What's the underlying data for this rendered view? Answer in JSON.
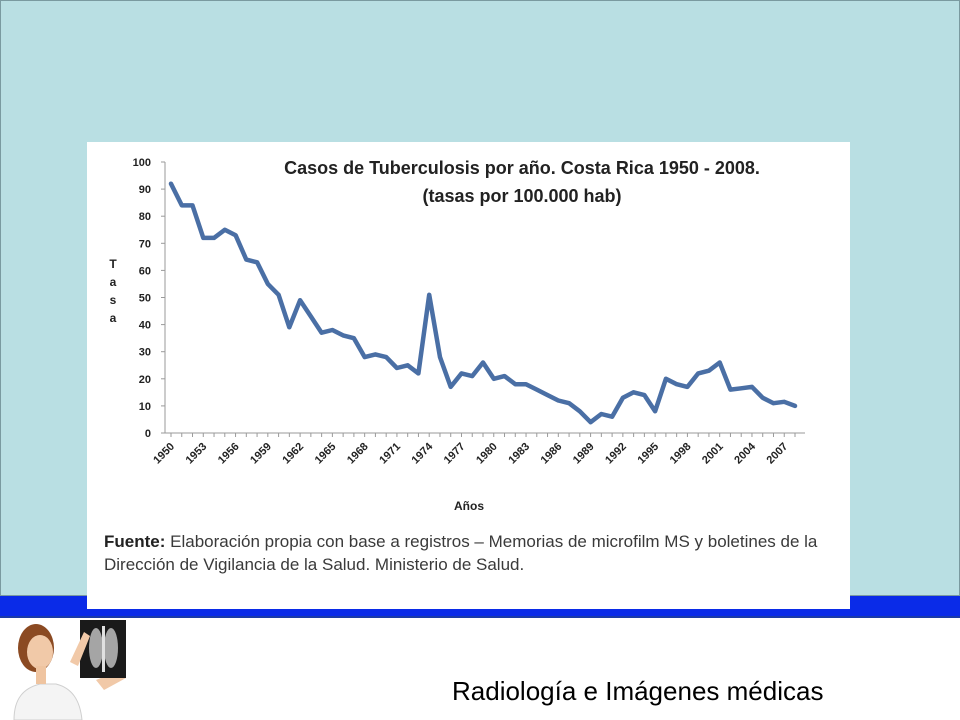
{
  "chart_data": {
    "type": "line",
    "title_line1": "Casos de Tuberculosis por año. Costa Rica 1950 - 2008.",
    "title_line2": "(tasas por 100.000 hab)",
    "xlabel": "Años",
    "ylabel": "Tasa",
    "ylim": [
      0,
      100
    ],
    "yticks": [
      "0",
      "10",
      "20",
      "30",
      "40",
      "50",
      "60",
      "70",
      "80",
      "90",
      "100"
    ],
    "xtick_labels": [
      "1950",
      "1953",
      "1956",
      "1959",
      "1962",
      "1965",
      "1968",
      "1971",
      "1974",
      "1977",
      "1980",
      "1983",
      "1986",
      "1989",
      "1992",
      "1995",
      "1998",
      "2001",
      "2004",
      "2007"
    ],
    "x": [
      1950,
      1951,
      1952,
      1953,
      1954,
      1955,
      1956,
      1957,
      1958,
      1959,
      1960,
      1961,
      1962,
      1963,
      1964,
      1965,
      1966,
      1967,
      1968,
      1969,
      1970,
      1971,
      1972,
      1973,
      1974,
      1975,
      1976,
      1977,
      1978,
      1979,
      1980,
      1981,
      1982,
      1983,
      1984,
      1985,
      1986,
      1987,
      1988,
      1989,
      1990,
      1991,
      1992,
      1993,
      1994,
      1995,
      1996,
      1997,
      1998,
      1999,
      2000,
      2001,
      2002,
      2003,
      2004,
      2005,
      2006,
      2007,
      2008
    ],
    "values": [
      92,
      84,
      84,
      72,
      72,
      75,
      73,
      64,
      63,
      55,
      51,
      39,
      49,
      43,
      37,
      38,
      36,
      35,
      28,
      29,
      28,
      24,
      25,
      22,
      51,
      28,
      17,
      22,
      21,
      26,
      20,
      21,
      18,
      18,
      16,
      14,
      12,
      11,
      8,
      4,
      7,
      6,
      13,
      15,
      14,
      8,
      20,
      18,
      17,
      22,
      23,
      26,
      16,
      16.5,
      17,
      13,
      11,
      11.5,
      10
    ],
    "line_color": "#4a6fa5",
    "grid": false,
    "source_label": "Fuente:",
    "source_text": "Elaboración propia con base a registros – Memorias de microfilm MS y boletines de la Dirección de Vigilancia de la Salud. Ministerio de Salud."
  },
  "footer": {
    "caption": "Radiología e Imágenes médicas"
  },
  "colors": {
    "slide_background": "#b9dfe3",
    "band": "#0a2be8"
  }
}
